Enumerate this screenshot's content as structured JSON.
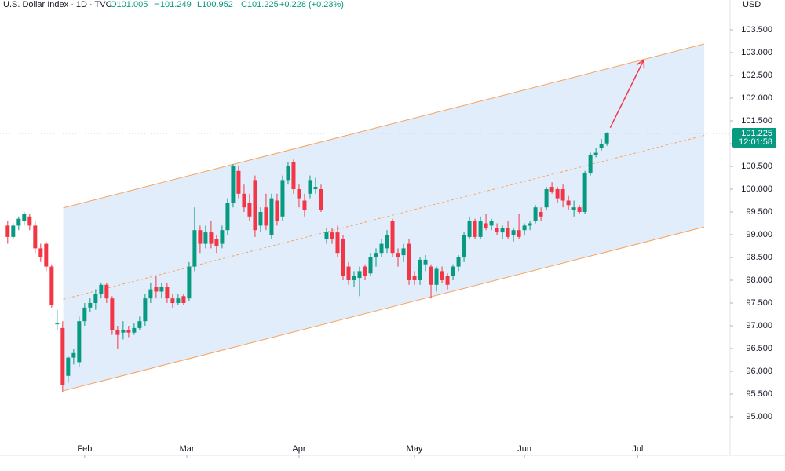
{
  "chart_data": {
    "type": "candlestick",
    "header": {
      "symbol": "U.S. Dollar Index · 1D · TVC",
      "open": "O101.005",
      "high": "H101.249",
      "low": "L100.952",
      "close": "C101.225",
      "change": "+0.228 (+0.23%)"
    },
    "currency": "USD",
    "up_color": "#089981",
    "down_color": "#f23645",
    "candles": [
      [
        99.2,
        99.3,
        98.8,
        98.95
      ],
      [
        98.95,
        99.25,
        98.9,
        99.2
      ],
      [
        99.2,
        99.4,
        99.1,
        99.35
      ],
      [
        99.3,
        99.5,
        99.2,
        99.45
      ],
      [
        99.4,
        99.45,
        99.1,
        99.2
      ],
      [
        99.2,
        99.3,
        98.6,
        98.7
      ],
      [
        98.7,
        98.8,
        98.4,
        98.5
      ],
      [
        98.8,
        98.85,
        98.2,
        98.3
      ],
      [
        98.3,
        98.35,
        97.4,
        97.45
      ],
      [
        97.05,
        97.35,
        96.9,
        97.05
      ],
      [
        96.95,
        97.1,
        95.55,
        95.7
      ],
      [
        95.9,
        96.35,
        95.75,
        96.3
      ],
      [
        96.3,
        96.5,
        96.15,
        96.4
      ],
      [
        96.2,
        97.2,
        96.1,
        97.1
      ],
      [
        97.1,
        97.5,
        97.0,
        97.4
      ],
      [
        97.4,
        97.6,
        97.3,
        97.5
      ],
      [
        97.5,
        97.8,
        97.35,
        97.7
      ],
      [
        97.7,
        97.95,
        97.6,
        97.9
      ],
      [
        97.9,
        97.95,
        97.5,
        97.6
      ],
      [
        97.6,
        97.65,
        96.8,
        96.9
      ],
      [
        96.9,
        97.0,
        96.5,
        96.8
      ],
      [
        96.85,
        97.1,
        96.7,
        96.9
      ],
      [
        96.9,
        97.0,
        96.75,
        96.85
      ],
      [
        96.85,
        97.05,
        96.8,
        96.95
      ],
      [
        96.95,
        97.2,
        96.9,
        97.1
      ],
      [
        97.1,
        97.7,
        97.0,
        97.6
      ],
      [
        97.6,
        97.95,
        97.5,
        97.8
      ],
      [
        97.85,
        98.1,
        97.6,
        97.75
      ],
      [
        97.75,
        97.95,
        97.6,
        97.85
      ],
      [
        97.85,
        97.95,
        97.5,
        97.6
      ],
      [
        97.6,
        97.7,
        97.4,
        97.5
      ],
      [
        97.5,
        97.7,
        97.45,
        97.6
      ],
      [
        97.65,
        97.7,
        97.45,
        97.5
      ],
      [
        97.6,
        98.4,
        97.55,
        98.3
      ],
      [
        98.3,
        99.6,
        98.2,
        99.1
      ],
      [
        99.1,
        99.2,
        98.6,
        98.8
      ],
      [
        98.8,
        99.2,
        98.7,
        99.05
      ],
      [
        99.05,
        99.3,
        98.7,
        98.8
      ],
      [
        98.9,
        99.0,
        98.6,
        98.75
      ],
      [
        98.8,
        99.2,
        98.7,
        99.1
      ],
      [
        99.1,
        99.8,
        99.0,
        99.7
      ],
      [
        99.7,
        100.55,
        99.6,
        100.5
      ],
      [
        100.4,
        100.5,
        99.8,
        99.9
      ],
      [
        99.9,
        100.1,
        99.5,
        99.6
      ],
      [
        99.7,
        99.9,
        99.3,
        99.4
      ],
      [
        100.2,
        100.3,
        98.95,
        99.1
      ],
      [
        99.2,
        99.6,
        99.05,
        99.5
      ],
      [
        99.6,
        99.9,
        99.1,
        99.2
      ],
      [
        99.0,
        99.9,
        98.9,
        99.8
      ],
      [
        99.75,
        99.9,
        99.2,
        99.3
      ],
      [
        99.4,
        100.3,
        99.3,
        100.2
      ],
      [
        100.2,
        100.6,
        100.1,
        100.5
      ],
      [
        100.6,
        100.65,
        99.9,
        100.0
      ],
      [
        100.0,
        100.1,
        99.6,
        99.8
      ],
      [
        99.75,
        99.9,
        99.4,
        99.55
      ],
      [
        99.9,
        100.3,
        99.8,
        100.2
      ],
      [
        100.0,
        100.25,
        99.9,
        100.05
      ],
      [
        100.0,
        100.1,
        99.5,
        99.55
      ],
      [
        98.9,
        99.15,
        98.8,
        99.05
      ],
      [
        99.05,
        99.15,
        98.8,
        98.9
      ],
      [
        99.05,
        99.2,
        98.5,
        98.6
      ],
      [
        98.9,
        99.0,
        98.0,
        98.1
      ],
      [
        98.3,
        98.4,
        97.9,
        98.0
      ],
      [
        98.0,
        98.2,
        97.85,
        98.1
      ],
      [
        98.05,
        98.3,
        97.65,
        98.2
      ],
      [
        98.3,
        98.35,
        98.0,
        98.1
      ],
      [
        98.15,
        98.6,
        98.1,
        98.5
      ],
      [
        98.5,
        98.7,
        98.3,
        98.6
      ],
      [
        98.6,
        98.9,
        98.5,
        98.8
      ],
      [
        98.7,
        99.1,
        98.6,
        99.0
      ],
      [
        99.3,
        99.35,
        98.5,
        98.6
      ],
      [
        98.6,
        98.7,
        98.3,
        98.5
      ],
      [
        98.55,
        98.8,
        98.4,
        98.7
      ],
      [
        98.8,
        98.9,
        97.9,
        98.0
      ],
      [
        98.1,
        98.2,
        97.9,
        98.0
      ],
      [
        98.0,
        98.5,
        97.9,
        98.45
      ],
      [
        98.35,
        98.55,
        98.2,
        98.45
      ],
      [
        98.3,
        98.35,
        97.6,
        97.9
      ],
      [
        97.9,
        98.3,
        97.75,
        98.25
      ],
      [
        98.2,
        98.3,
        97.95,
        98.0
      ],
      [
        98.1,
        98.15,
        97.8,
        97.9
      ],
      [
        98.1,
        98.35,
        98.0,
        98.3
      ],
      [
        98.3,
        98.55,
        98.2,
        98.5
      ],
      [
        98.5,
        99.05,
        98.4,
        99.0
      ],
      [
        98.95,
        99.4,
        98.9,
        99.3
      ],
      [
        99.3,
        99.35,
        98.9,
        98.95
      ],
      [
        98.95,
        99.4,
        98.9,
        99.3
      ],
      [
        99.25,
        99.45,
        99.1,
        99.15
      ],
      [
        99.2,
        99.35,
        99.1,
        99.3
      ],
      [
        99.15,
        99.25,
        99.0,
        99.05
      ],
      [
        99.05,
        99.2,
        98.9,
        99.15
      ],
      [
        99.15,
        99.3,
        98.9,
        98.95
      ],
      [
        99.0,
        99.15,
        98.85,
        99.1
      ],
      [
        99.1,
        99.45,
        98.9,
        98.95
      ],
      [
        99.1,
        99.25,
        99.0,
        99.2
      ],
      [
        99.2,
        99.3,
        99.1,
        99.25
      ],
      [
        99.3,
        99.65,
        99.25,
        99.6
      ],
      [
        99.5,
        99.6,
        99.3,
        99.4
      ],
      [
        99.6,
        100.05,
        99.55,
        100.0
      ],
      [
        100.05,
        100.15,
        99.9,
        99.95
      ],
      [
        100.0,
        100.05,
        99.7,
        99.8
      ],
      [
        100.0,
        100.1,
        99.6,
        99.75
      ],
      [
        99.75,
        99.85,
        99.55,
        99.65
      ],
      [
        99.55,
        99.75,
        99.4,
        99.6
      ],
      [
        99.6,
        99.65,
        99.45,
        99.5
      ],
      [
        99.5,
        100.4,
        99.45,
        100.35
      ],
      [
        100.35,
        100.8,
        100.3,
        100.75
      ],
      [
        100.75,
        100.9,
        100.7,
        100.8
      ],
      [
        100.9,
        101.1,
        100.85,
        101.0
      ],
      [
        101.005,
        101.249,
        100.952,
        101.225
      ]
    ],
    "xlim": [
      -1.4,
      131.4
    ],
    "xticks": [
      {
        "value": 14,
        "label": "Feb"
      },
      {
        "value": 32.6,
        "label": "Mar"
      },
      {
        "value": 53,
        "label": "Apr"
      },
      {
        "value": 74,
        "label": "May"
      },
      {
        "value": 94,
        "label": "Jun"
      },
      {
        "value": 114.6,
        "label": "Jul"
      }
    ],
    "ylim": [
      94.155,
      104.155
    ],
    "yticks": [
      {
        "value": 95,
        "label": "95.000"
      },
      {
        "value": 95.5,
        "label": "95.500"
      },
      {
        "value": 96,
        "label": "96.000"
      },
      {
        "value": 96.5,
        "label": "96.500"
      },
      {
        "value": 97,
        "label": "97.000"
      },
      {
        "value": 97.5,
        "label": "97.500"
      },
      {
        "value": 98,
        "label": "98.000"
      },
      {
        "value": 98.5,
        "label": "98.500"
      },
      {
        "value": 99,
        "label": "99.000"
      },
      {
        "value": 99.5,
        "label": "99.500"
      },
      {
        "value": 100,
        "label": "100.000"
      },
      {
        "value": 100.5,
        "label": "100.500"
      },
      {
        "value": 101,
        "label": "101.000"
      },
      {
        "value": 101.5,
        "label": "101.500"
      },
      {
        "value": 102,
        "label": "102.000"
      },
      {
        "value": 102.5,
        "label": "102.500"
      },
      {
        "value": 103,
        "label": "103.000"
      },
      {
        "value": 103.5,
        "label": "103.500"
      }
    ],
    "last_price": {
      "value": 101.225,
      "label": "101.225"
    },
    "countdown": "12:01:58",
    "channel": {
      "x": [
        10.1,
        126.7
      ],
      "upper": [
        99.59,
        103.19
      ],
      "middle": [
        97.58,
        101.18
      ],
      "lower": [
        95.57,
        99.17
      ],
      "color": "#f7a35c",
      "fill": "#dbe9fb"
    },
    "arrow": {
      "x": [
        109.6,
        115.7
      ],
      "y": [
        101.35,
        102.84
      ],
      "color": "#f23645"
    }
  }
}
